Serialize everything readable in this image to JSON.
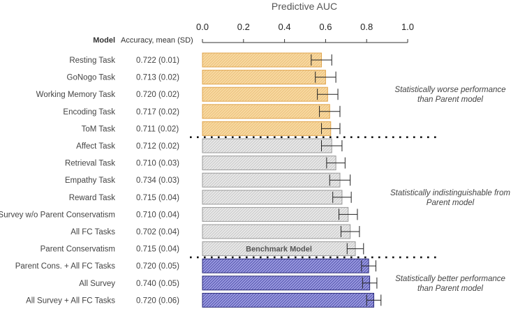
{
  "chart_data": {
    "type": "bar",
    "orientation": "horizontal",
    "title": "Predictive AUC",
    "xlim": [
      0,
      1.0
    ],
    "x_ticks": [
      "0.0",
      "0.2",
      "0.4",
      "0.6",
      "0.8",
      "1.0"
    ],
    "column_headers": {
      "model": "Model",
      "accuracy": "Accuracy, mean (SD)"
    },
    "rows": [
      {
        "model": "Resting Task",
        "accuracy": "0.722 (0.01)",
        "auc": 0.58,
        "err": 0.05,
        "group": "worse"
      },
      {
        "model": "GoNogo Task",
        "accuracy": "0.713 (0.02)",
        "auc": 0.6,
        "err": 0.05,
        "group": "worse"
      },
      {
        "model": "Working Memory Task",
        "accuracy": "0.720 (0.02)",
        "auc": 0.61,
        "err": 0.05,
        "group": "worse"
      },
      {
        "model": "Encoding Task",
        "accuracy": "0.717 (0.02)",
        "auc": 0.62,
        "err": 0.05,
        "group": "worse"
      },
      {
        "model": "ToM Task",
        "accuracy": "0.711 (0.02)",
        "auc": 0.625,
        "err": 0.045,
        "group": "worse"
      },
      {
        "model": "Affect Task",
        "accuracy": "0.712 (0.02)",
        "auc": 0.63,
        "err": 0.05,
        "group": "same"
      },
      {
        "model": "Retrieval Task",
        "accuracy": "0.710 (0.03)",
        "auc": 0.65,
        "err": 0.045,
        "group": "same"
      },
      {
        "model": "Empathy Task",
        "accuracy": "0.734 (0.03)",
        "auc": 0.67,
        "err": 0.05,
        "group": "same"
      },
      {
        "model": "Reward Task",
        "accuracy": "0.715 (0.04)",
        "auc": 0.68,
        "err": 0.045,
        "group": "same"
      },
      {
        "model": "Survey w/o Parent Conservatism",
        "accuracy": "0.710 (0.04)",
        "auc": 0.71,
        "err": 0.045,
        "group": "same"
      },
      {
        "model": "All FC Tasks",
        "accuracy": "0.702 (0.04)",
        "auc": 0.72,
        "err": 0.045,
        "group": "same"
      },
      {
        "model": "Parent Conservatism",
        "accuracy": "0.715 (0.04)",
        "auc": 0.745,
        "err": 0.04,
        "group": "same",
        "annotation": "Benchmark Model"
      },
      {
        "model": "Parent Cons. + All FC Tasks",
        "accuracy": "0.720 (0.05)",
        "auc": 0.81,
        "err": 0.035,
        "group": "better"
      },
      {
        "model": "All Survey",
        "accuracy": "0.740 (0.05)",
        "auc": 0.815,
        "err": 0.035,
        "group": "better"
      },
      {
        "model": "All Survey + All FC Tasks",
        "accuracy": "0.720 (0.06)",
        "auc": 0.835,
        "err": 0.035,
        "group": "better"
      }
    ],
    "groups": [
      {
        "id": "worse",
        "note_lines": [
          "Statistically worse performance",
          "than Parent model"
        ],
        "fill": "#f8d9a0",
        "stroke": "#e0a54e",
        "hatch": "#e6b872"
      },
      {
        "id": "same",
        "note_lines": [
          "Statistically indistinguishable from",
          "Parent model"
        ],
        "fill": "#e8e8e8",
        "stroke": "#9a9a9a",
        "hatch": "#bdbdbd"
      },
      {
        "id": "better",
        "note_lines": [
          "Statistically better performance",
          "than Parent model"
        ],
        "fill": "#9a9ae0",
        "stroke": "#2a2a7a",
        "hatch": "#3a3a9a"
      }
    ],
    "grid": false,
    "legend": "none"
  }
}
